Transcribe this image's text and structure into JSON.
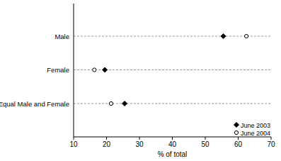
{
  "chart_data": {
    "type": "dot",
    "orientation": "horizontal",
    "categories": [
      "Male",
      "Female",
      "Equal Male and Female"
    ],
    "series": [
      {
        "name": "June 2003",
        "color": "#000000",
        "marker": "diamond",
        "values": [
          55.5,
          19.5,
          25.5
        ]
      },
      {
        "name": "June 2004",
        "color": "#000000",
        "marker": "circle",
        "values": [
          62.5,
          16.3,
          21.4
        ]
      }
    ],
    "x_label": "% of total",
    "xlim": [
      10,
      70
    ],
    "xticks": [
      10,
      20,
      30,
      40,
      50,
      60,
      70
    ],
    "grid": true,
    "legend": "lower right"
  }
}
